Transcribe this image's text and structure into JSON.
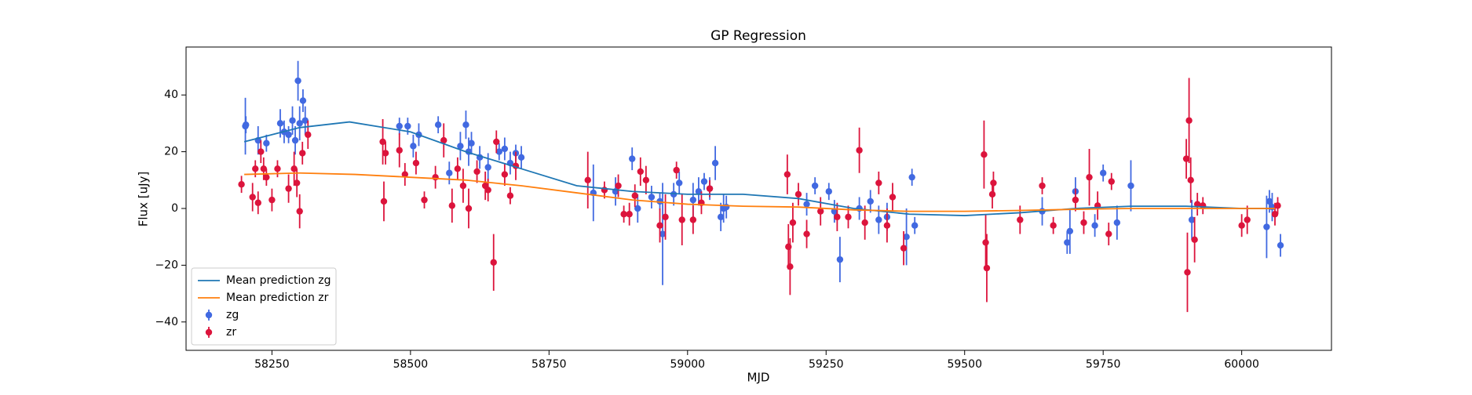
{
  "chart_data": {
    "type": "errorbar",
    "title": "GP Regression",
    "xlabel": "MJD",
    "ylabel": "Flux [uJy]",
    "xlim": [
      58095,
      60162
    ],
    "ylim": [
      -50,
      56.9
    ],
    "xticks": [
      58250,
      58500,
      58750,
      59000,
      59250,
      59500,
      59750,
      60000
    ],
    "yticks": [
      {
        "value": -40,
        "label": "−40"
      },
      {
        "value": -20,
        "label": "−20"
      },
      0,
      20,
      40
    ],
    "legend": "lower left",
    "series": [
      {
        "name": "Mean prediction zg",
        "kind": "line",
        "color": "#1f77b4",
        "x": [
          58200,
          58300,
          58390,
          58500,
          58600,
          58700,
          58800,
          58900,
          59000,
          59100,
          59200,
          59300,
          59400,
          59500,
          59600,
          59700,
          59800,
          59900,
          60000,
          60060
        ],
        "values": [
          23.5,
          28.5,
          30.5,
          27,
          20,
          14,
          8,
          6,
          5,
          5,
          3.5,
          0,
          -2,
          -2.5,
          -1.5,
          0,
          0.8,
          0.8,
          0,
          0
        ]
      },
      {
        "name": "Mean prediction zr",
        "kind": "line",
        "color": "#ff7f0e",
        "x": [
          58200,
          58300,
          58400,
          58500,
          58600,
          58700,
          58800,
          58900,
          59000,
          59100,
          59200,
          59300,
          59400,
          59500,
          59600,
          59700,
          59800,
          59900,
          60000,
          60060
        ],
        "values": [
          12,
          12.5,
          12,
          11,
          10,
          8,
          5.5,
          3,
          1.5,
          0.8,
          0.5,
          -0.5,
          -1,
          -1,
          -0.7,
          -0.3,
          0,
          0,
          0,
          0
        ]
      },
      {
        "name": "zg",
        "kind": "errorbar",
        "color": "#4169e1",
        "x": [
          58202,
          58203,
          58225,
          58240,
          58265,
          58272,
          58280,
          58287,
          58292,
          58297,
          58300,
          58306,
          58310,
          58480,
          58495,
          58505,
          58515,
          58550,
          58570,
          58590,
          58600,
          58605,
          58610,
          58625,
          58640,
          58660,
          58670,
          58680,
          58690,
          58700,
          58830,
          58870,
          58900,
          58910,
          58935,
          58950,
          58955,
          58975,
          58985,
          59010,
          59020,
          59030,
          59040,
          59050,
          59060,
          59065,
          59070,
          59215,
          59230,
          59255,
          59265,
          59275,
          59310,
          59330,
          59345,
          59360,
          59395,
          59405,
          59410,
          59640,
          59685,
          59690,
          59700,
          59735,
          59750,
          59775,
          59800,
          59910,
          60045,
          60050,
          60055,
          60070
        ],
        "values": [
          29,
          29.5,
          24,
          23,
          30,
          27,
          26,
          31,
          24,
          45,
          30,
          38,
          31,
          29,
          29,
          22,
          26,
          29.5,
          12.5,
          22,
          29.5,
          20,
          23,
          18,
          14.5,
          20,
          21,
          16,
          19.5,
          18,
          5.5,
          6,
          17.5,
          0,
          4,
          2.5,
          -9,
          5,
          9,
          3,
          6,
          9.5,
          7,
          16,
          -3,
          0,
          0.5,
          1.5,
          8,
          6,
          -1,
          -18,
          0,
          2.5,
          -4,
          -3,
          -10,
          11,
          -6,
          -1,
          -12,
          -8,
          6,
          -6,
          12.5,
          -5,
          8,
          -4,
          -6.5,
          2.5,
          0.5,
          -13
        ],
        "errors": [
          10,
          3,
          5,
          3,
          5,
          4,
          3,
          5,
          5,
          7,
          6,
          4,
          5,
          3,
          3,
          4,
          4,
          3,
          4,
          5,
          5,
          5,
          4,
          4,
          5,
          3,
          4,
          4,
          3,
          4,
          10,
          5,
          4,
          5,
          4,
          3,
          18,
          4,
          4,
          6,
          5,
          3,
          4,
          6,
          5,
          5,
          4,
          4,
          3,
          3,
          4,
          8,
          4,
          4,
          5,
          5,
          10,
          3,
          3,
          5,
          4,
          8,
          5,
          4,
          3,
          6,
          9,
          7,
          11,
          4,
          5,
          4
        ]
      },
      {
        "name": "zr",
        "kind": "errorbar",
        "color": "#dc143c",
        "x": [
          58195,
          58215,
          58220,
          58225,
          58230,
          58235,
          58240,
          58250,
          58260,
          58280,
          58290,
          58295,
          58300,
          58305,
          58315,
          58450,
          58452,
          58455,
          58480,
          58490,
          58510,
          58525,
          58545,
          58560,
          58575,
          58585,
          58595,
          58605,
          58620,
          58635,
          58640,
          58650,
          58655,
          58670,
          58680,
          58690,
          58820,
          58850,
          58875,
          58885,
          58895,
          58905,
          58915,
          58925,
          58950,
          58960,
          58980,
          58990,
          59010,
          59025,
          59040,
          59180,
          59182,
          59185,
          59190,
          59200,
          59215,
          59240,
          59270,
          59290,
          59310,
          59320,
          59345,
          59360,
          59370,
          59390,
          59535,
          59540,
          59538,
          59550,
          59552,
          59600,
          59640,
          59660,
          59700,
          59715,
          59725,
          59740,
          59760,
          59765,
          59900,
          59902,
          59905,
          59908,
          59915,
          59920,
          59930,
          60000,
          60010,
          60060,
          60065
        ],
        "values": [
          8.5,
          4,
          14,
          2,
          20,
          14,
          11,
          3,
          14,
          7,
          14,
          9,
          -1,
          19.5,
          26,
          23.5,
          2.5,
          19.5,
          20.5,
          12,
          16,
          3,
          11,
          24,
          1,
          14,
          8,
          0,
          13,
          8,
          6.5,
          -19,
          23.5,
          12,
          4.5,
          15,
          10,
          6.5,
          8,
          -2,
          -2,
          4.5,
          13,
          10,
          -6,
          -3,
          13.5,
          -4,
          -4,
          2,
          7,
          12,
          -13.5,
          -20.5,
          -5,
          5,
          -9,
          -1,
          -3,
          -3,
          20.5,
          -5,
          9,
          -6,
          4,
          -14,
          19,
          -21,
          -12,
          5,
          9,
          -4,
          8,
          -6,
          3,
          -5,
          11,
          1,
          -9,
          9.5,
          17.5,
          -22.5,
          31,
          10,
          -11,
          1.5,
          1,
          -6,
          -4,
          -2,
          1
        ],
        "errors": [
          3,
          5,
          3,
          4,
          4,
          4,
          3,
          4,
          3,
          5,
          6,
          5,
          6,
          4,
          5,
          8,
          7,
          4,
          6,
          4,
          4,
          3,
          4,
          6,
          6,
          4,
          6,
          7,
          4,
          5,
          4,
          10,
          4,
          4,
          3,
          5,
          10,
          3,
          4,
          3,
          4,
          4,
          5,
          5,
          6,
          8,
          3,
          9,
          5,
          4,
          3,
          7,
          8,
          10,
          7,
          4,
          5,
          5,
          5,
          4,
          8,
          6,
          4,
          6,
          5,
          6,
          12,
          12,
          10,
          5,
          4,
          5,
          3,
          3,
          4,
          4,
          10,
          5,
          4,
          3,
          7,
          14,
          15,
          8,
          8,
          4,
          3,
          4,
          5,
          4,
          3
        ]
      }
    ]
  }
}
